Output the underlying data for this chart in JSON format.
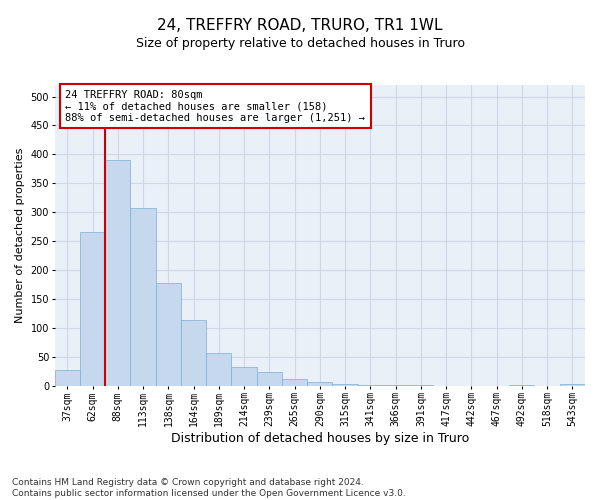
{
  "title1": "24, TREFFRY ROAD, TRURO, TR1 1WL",
  "title2": "Size of property relative to detached houses in Truro",
  "xlabel": "Distribution of detached houses by size in Truro",
  "ylabel": "Number of detached properties",
  "categories": [
    "37sqm",
    "62sqm",
    "88sqm",
    "113sqm",
    "138sqm",
    "164sqm",
    "189sqm",
    "214sqm",
    "239sqm",
    "265sqm",
    "290sqm",
    "315sqm",
    "341sqm",
    "366sqm",
    "391sqm",
    "417sqm",
    "442sqm",
    "467sqm",
    "492sqm",
    "518sqm",
    "543sqm"
  ],
  "values": [
    27,
    265,
    390,
    308,
    178,
    113,
    57,
    32,
    23,
    12,
    6,
    2,
    1,
    1,
    1,
    0,
    0,
    0,
    1,
    0,
    3
  ],
  "bar_color": "#c5d8ed",
  "bar_edge_color": "#7aafd4",
  "annotation_text": "24 TREFFRY ROAD: 80sqm\n← 11% of detached houses are smaller (158)\n88% of semi-detached houses are larger (1,251) →",
  "annotation_box_color": "#ffffff",
  "annotation_box_edge": "#cc0000",
  "vline_color": "#cc0000",
  "vline_x": 1.5,
  "ylim": [
    0,
    520
  ],
  "yticks": [
    0,
    50,
    100,
    150,
    200,
    250,
    300,
    350,
    400,
    450,
    500
  ],
  "grid_color": "#d0d8e8",
  "background_color": "#eaf0f8",
  "footer": "Contains HM Land Registry data © Crown copyright and database right 2024.\nContains public sector information licensed under the Open Government Licence v3.0.",
  "title1_fontsize": 11,
  "title2_fontsize": 9,
  "xlabel_fontsize": 9,
  "ylabel_fontsize": 8,
  "tick_fontsize": 7,
  "annotation_fontsize": 7.5,
  "footer_fontsize": 6.5
}
